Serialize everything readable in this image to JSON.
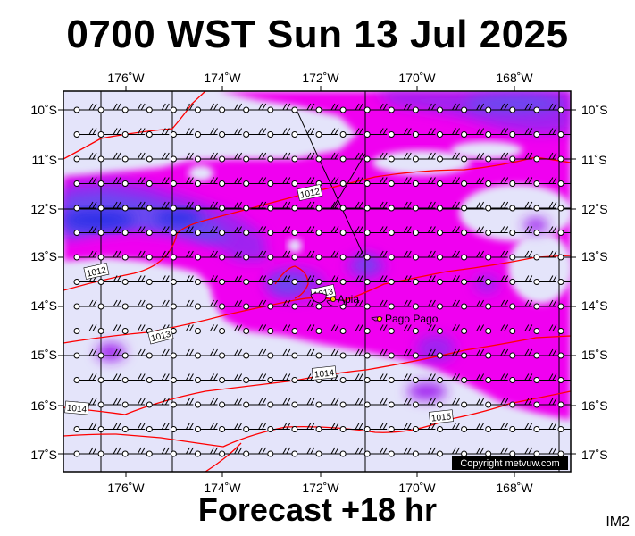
{
  "title": "0700 WST Sun 13 Jul 2025",
  "footer": "Forecast +18 hr",
  "map_code": "IM2",
  "copyright": "Copyright metvuw.com",
  "lon_ticks": [
    "176˚W",
    "174˚W",
    "172˚W",
    "170˚W",
    "168˚W"
  ],
  "lat_ticks": [
    "10˚S",
    "11˚S",
    "12˚S",
    "13˚S",
    "14˚S",
    "15˚S",
    "16˚S",
    "17˚S"
  ],
  "isobar_labels": [
    "1012",
    "1012",
    "1013",
    "1013",
    "1014",
    "1014",
    "1015"
  ],
  "places": [
    {
      "name": "Apia"
    },
    {
      "name": "Pago Pago"
    }
  ],
  "colors": {
    "sea_background": "#e4e4fa",
    "rain_light": "#f000f0",
    "rain_moderate": "#a020f0",
    "rain_heavy": "#6a4af0",
    "rain_very_heavy": "#3030e8",
    "isobar": "#ff0000",
    "wind_barb": "#000000"
  }
}
